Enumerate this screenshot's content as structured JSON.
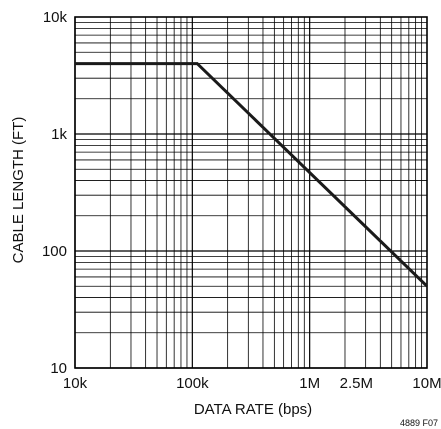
{
  "chart_data": {
    "type": "line",
    "x_scale": "log",
    "y_scale": "log",
    "xlabel": "DATA RATE (bps)",
    "ylabel": "CABLE LENGTH (FT)",
    "xlim": [
      10000,
      10000000
    ],
    "ylim": [
      10,
      10000
    ],
    "x_ticks": [
      {
        "value": 10000,
        "label": "10k"
      },
      {
        "value": 100000,
        "label": "100k"
      },
      {
        "value": 1000000,
        "label": "1M"
      },
      {
        "value": 2500000,
        "label": "2.5M"
      },
      {
        "value": 10000000,
        "label": "10M"
      }
    ],
    "y_ticks": [
      {
        "value": 10,
        "label": "10"
      },
      {
        "value": 100,
        "label": "100"
      },
      {
        "value": 1000,
        "label": "1k"
      },
      {
        "value": 10000,
        "label": "10k"
      }
    ],
    "grid": true,
    "series": [
      {
        "x": [
          10000,
          110000,
          10000000
        ],
        "y": [
          4000,
          4000,
          50
        ]
      }
    ],
    "figure_id": "4889 F07",
    "colors": {
      "grid": "#000000",
      "line": "#1a1a1a",
      "text": "#111111"
    }
  }
}
